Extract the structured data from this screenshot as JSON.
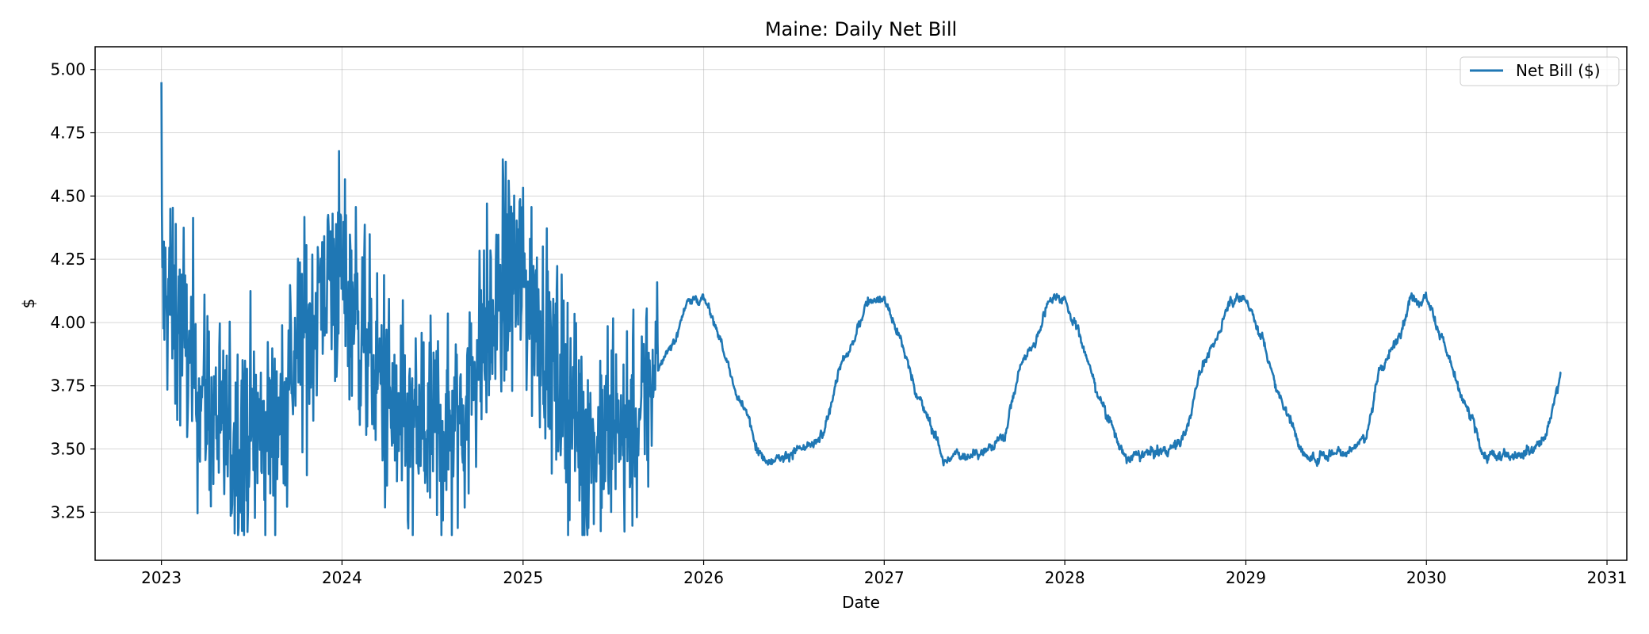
{
  "chart_data": {
    "type": "line",
    "title": "Maine: Daily Net Bill",
    "xlabel": "Date",
    "ylabel": "$",
    "xlim": [
      "2022-08-20",
      "2031-02-10"
    ],
    "ylim": [
      3.06,
      5.09
    ],
    "x_ticks": [
      "2023",
      "2024",
      "2025",
      "2026",
      "2027",
      "2028",
      "2029",
      "2030",
      "2031"
    ],
    "y_ticks": [
      "3.25",
      "3.50",
      "3.75",
      "4.00",
      "4.25",
      "4.50",
      "4.75",
      "5.00"
    ],
    "grid": true,
    "legend_position": "top-right",
    "color": "#1f77b4",
    "series": [
      {
        "name": "Net Bill ($)",
        "x_start": "2023-01-01",
        "x_step": "1 day",
        "x_end": "2030-09-30",
        "observed_period": {
          "start": "2023-01-01",
          "end": "2025-09-30",
          "peak_value": 5.0,
          "min_value": 3.16,
          "typical_winter_range": [
            3.8,
            4.9
          ],
          "typical_summer_range": [
            3.2,
            4.2
          ]
        },
        "seasonal_profile": {
          "start": "2025-10-01",
          "end": "2030-09-30",
          "monthly_values": {
            "Jan": 4.1,
            "Feb": 3.95,
            "Mar": 3.75,
            "Apr": 3.62,
            "May": 3.46,
            "Jun": 3.47,
            "Jul": 3.49,
            "Aug": 3.5,
            "Sep": 3.55,
            "Oct": 3.82,
            "Nov": 3.92,
            "Dec": 4.1
          },
          "peak": 4.13,
          "trough": 3.37
        }
      }
    ]
  }
}
